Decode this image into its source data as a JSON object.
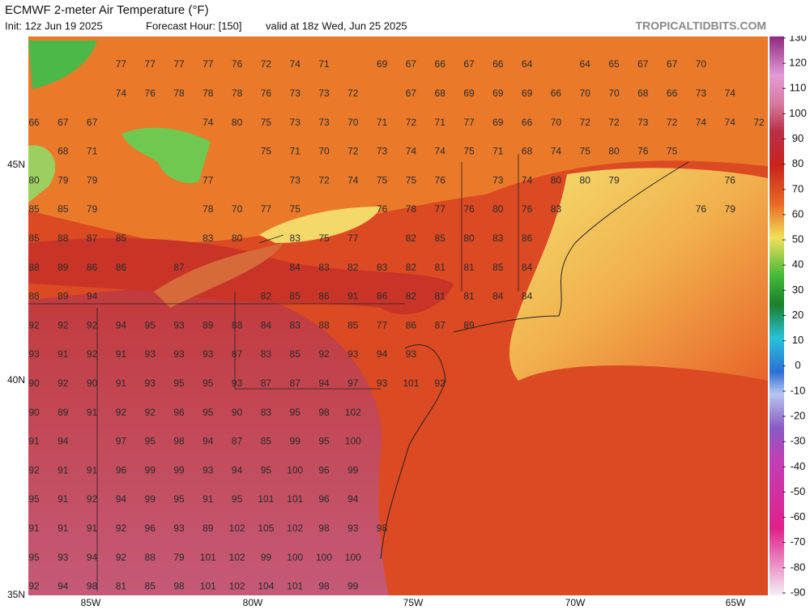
{
  "header": {
    "title": "ECMWF 2-meter Air Temperature (°F)",
    "init": "Init: 12z Jun 19 2025",
    "forecast_hour": "Forecast Hour: [150]",
    "valid": "valid at 18z Wed, Jun 25 2025",
    "site": "TROPICALTIDBITS.COM"
  },
  "colorbar": {
    "ticks": [
      130,
      120,
      110,
      100,
      90,
      80,
      70,
      60,
      50,
      40,
      30,
      20,
      10,
      0,
      -10,
      -20,
      -30,
      -40,
      -50,
      -60,
      -70,
      -80,
      -90
    ]
  },
  "lat_labels": [
    "45N",
    "40N",
    "35N"
  ],
  "lon_labels": [
    "85W",
    "80W",
    "75W",
    "70W",
    "65W"
  ],
  "station_values": [
    [
      null,
      null,
      null,
      77,
      77,
      77,
      77,
      76,
      72,
      74,
      71,
      null,
      69,
      67,
      66,
      67,
      66,
      64,
      null,
      64,
      65,
      67,
      67,
      70
    ],
    [
      null,
      null,
      null,
      74,
      76,
      78,
      78,
      78,
      76,
      73,
      73,
      72,
      null,
      67,
      68,
      69,
      69,
      69,
      66,
      70,
      70,
      68,
      66,
      73,
      74
    ],
    [
      66,
      67,
      67,
      null,
      null,
      null,
      74,
      80,
      75,
      73,
      73,
      70,
      71,
      72,
      71,
      77,
      69,
      66,
      70,
      72,
      72,
      73,
      72,
      74,
      74,
      72
    ],
    [
      null,
      68,
      71,
      null,
      null,
      null,
      null,
      null,
      75,
      71,
      70,
      72,
      73,
      74,
      74,
      75,
      71,
      68,
      74,
      75,
      80,
      76,
      75
    ],
    [
      80,
      79,
      79,
      null,
      null,
      null,
      77,
      null,
      null,
      73,
      72,
      74,
      75,
      75,
      76,
      null,
      73,
      74,
      80,
      80,
      79,
      null,
      null,
      null,
      76
    ],
    [
      85,
      85,
      79,
      null,
      null,
      null,
      78,
      70,
      77,
      75,
      null,
      null,
      76,
      78,
      77,
      76,
      80,
      76,
      83,
      null,
      null,
      null,
      null,
      76,
      79
    ],
    [
      85,
      88,
      87,
      85,
      null,
      null,
      83,
      80,
      null,
      83,
      75,
      77,
      null,
      82,
      85,
      80,
      83,
      86
    ],
    [
      88,
      89,
      86,
      86,
      null,
      87,
      null,
      null,
      null,
      84,
      83,
      82,
      83,
      82,
      81,
      81,
      85,
      84
    ],
    [
      88,
      89,
      94,
      null,
      null,
      null,
      null,
      null,
      82,
      85,
      86,
      91,
      86,
      82,
      81,
      81,
      84,
      84
    ],
    [
      92,
      92,
      92,
      94,
      95,
      93,
      89,
      88,
      84,
      83,
      88,
      85,
      77,
      86,
      87,
      89
    ],
    [
      93,
      91,
      92,
      91,
      93,
      93,
      93,
      87,
      83,
      85,
      92,
      93,
      94,
      93
    ],
    [
      90,
      92,
      90,
      91,
      93,
      95,
      95,
      93,
      87,
      87,
      94,
      97,
      93,
      101,
      92
    ],
    [
      90,
      89,
      91,
      92,
      92,
      96,
      95,
      90,
      83,
      95,
      98,
      102
    ],
    [
      91,
      94,
      null,
      97,
      95,
      98,
      94,
      87,
      85,
      99,
      95,
      100
    ],
    [
      92,
      91,
      91,
      96,
      99,
      99,
      93,
      94,
      95,
      100,
      96,
      99
    ],
    [
      95,
      91,
      92,
      94,
      99,
      95,
      91,
      95,
      101,
      101,
      96,
      94
    ],
    [
      91,
      91,
      91,
      92,
      96,
      93,
      89,
      102,
      105,
      102,
      98,
      93,
      98
    ],
    [
      95,
      93,
      94,
      92,
      88,
      79,
      101,
      102,
      99,
      100,
      100,
      100
    ],
    [
      92,
      94,
      98,
      81,
      85,
      98,
      101,
      102,
      104,
      101,
      98,
      99
    ]
  ]
}
